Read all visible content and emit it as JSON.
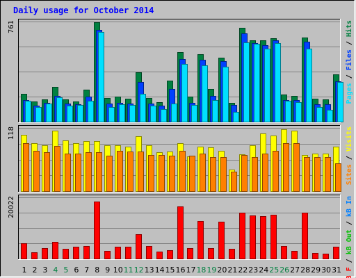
{
  "chart_data": {
    "type": "bar",
    "title": "Daily usage for October 2014",
    "days": [
      "1",
      "2",
      "3",
      "4",
      "5",
      "6",
      "7",
      "8",
      "9",
      "10",
      "11",
      "12",
      "13",
      "14",
      "15",
      "16",
      "17",
      "18",
      "19",
      "20",
      "21",
      "22",
      "23",
      "24",
      "25",
      "26",
      "27",
      "28",
      "29",
      "30",
      "31"
    ],
    "weekend_days": [
      "4",
      "5",
      "11",
      "12",
      "18",
      "19",
      "25",
      "26"
    ],
    "colors": {
      "hits": "#008040",
      "files": "#0040ff",
      "pages": "#00e0ff",
      "visits": "#ffff00",
      "sites": "#ff8000",
      "kbin": "#0080ff",
      "kbout": "#00c000",
      "kbf": "#ff0000",
      "weekday_label": "#000000",
      "weekend_label": "#008040"
    },
    "panels": [
      {
        "name": "hits-files-pages",
        "max_label": "761",
        "ymax": 761,
        "right_label": [
          {
            "text": "Pages",
            "color": "#00e0ff"
          },
          {
            "text": " / ",
            "color": "#000000"
          },
          {
            "text": "Files",
            "color": "#0040ff"
          },
          {
            "text": " / ",
            "color": "#000000"
          },
          {
            "text": "Hits",
            "color": "#008040"
          }
        ],
        "series": [
          {
            "key": "hits",
            "values": [
              210,
              155,
              170,
              262,
              170,
              155,
              243,
              758,
              180,
              190,
              175,
              373,
              180,
              150,
              311,
              527,
              190,
              515,
              247,
              487,
              145,
              715,
              619,
              616,
              632,
              207,
              195,
              640,
              173,
              170,
              359
            ]
          },
          {
            "key": "files",
            "values": [
              165,
              120,
              145,
              195,
              135,
              130,
              190,
              700,
              140,
              145,
              135,
              300,
              140,
              120,
              246,
              478,
              145,
              470,
              195,
              460,
              125,
              670,
              598,
              580,
              620,
              165,
              165,
              610,
              130,
              130,
              305
            ]
          },
          {
            "key": "pages",
            "values": [
              160,
              110,
              140,
              185,
              120,
              125,
              160,
              680,
              110,
              130,
              125,
              210,
              120,
              95,
              140,
              440,
              125,
              430,
              165,
              415,
              75,
              600,
              590,
              555,
              595,
              160,
              150,
              555,
              110,
              90,
              300
            ]
          }
        ]
      },
      {
        "name": "visits-sites",
        "max_label": "118",
        "ymax": 118,
        "right_label": [
          {
            "text": "Sites",
            "color": "#ff8000"
          },
          {
            "text": " / ",
            "color": "#000000"
          },
          {
            "text": "Visits",
            "color": "#ffff00"
          }
        ],
        "series": [
          {
            "key": "visits",
            "values": [
              105,
              90,
              85,
              113,
              95,
              90,
              94,
              94,
              85,
              85,
              83,
              102,
              85,
              73,
              74,
              89,
              65,
              83,
              82,
              75,
              40,
              69,
              86,
              108,
              104,
              115,
              113,
              68,
              70,
              70,
              83
            ]
          },
          {
            "key": "sites",
            "values": [
              90,
              75,
              73,
              84,
              70,
              70,
              72,
              72,
              66,
              75,
              74,
              74,
              68,
              68,
              66,
              75,
              66,
              70,
              63,
              63,
              36,
              68,
              63,
              70,
              75,
              90,
              90,
              63,
              63,
              63,
              52
            ]
          }
        ]
      },
      {
        "name": "kbytes",
        "max_label": "20022",
        "ymax": 20022,
        "right_label": [
          {
            "text": "kB F",
            "color": "#ff0000"
          },
          {
            "text": " / ",
            "color": "#000000"
          },
          {
            "text": "kB Out",
            "color": "#00c000"
          },
          {
            "text": " / ",
            "color": "#000000"
          },
          {
            "text": "kB In",
            "color": "#0080ff"
          }
        ],
        "series": [
          {
            "key": "kbf",
            "values": [
              5000,
              2000,
              3500,
              5500,
              3200,
              3800,
              4000,
              18700,
              2500,
              3900,
              3900,
              8000,
              4000,
              2200,
              2800,
              17000,
              3300,
              12300,
              3500,
              12000,
              3200,
              15000,
              14100,
              13800,
              14300,
              4000,
              2500,
              15000,
              1800,
              1500,
              3900
            ]
          }
        ]
      }
    ]
  }
}
